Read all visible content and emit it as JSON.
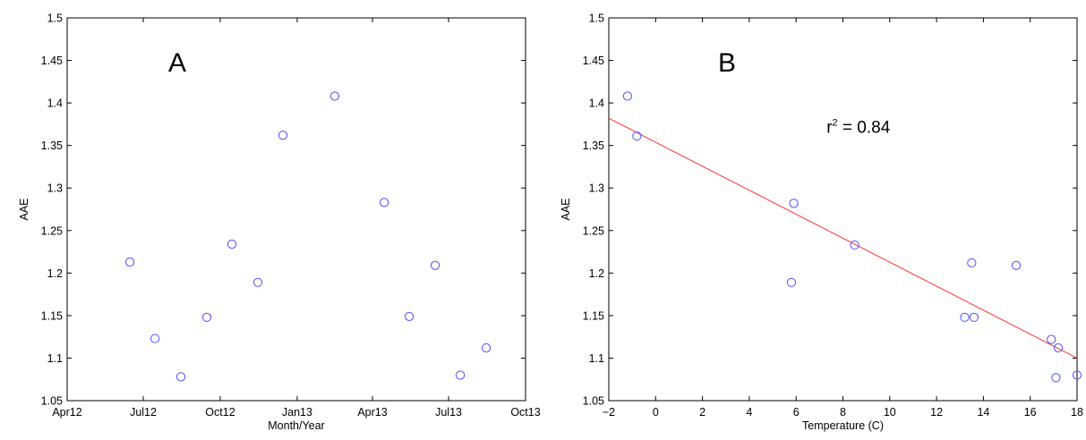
{
  "colors": {
    "marker": "#4d4dff",
    "fit_line": "#ff3333",
    "axis": "#000000",
    "background": "#ffffff"
  },
  "chart_data": [
    {
      "type": "scatter",
      "panel_label": "A",
      "xlabel": "Month/Year",
      "ylabel": "AAE",
      "x_axis_kind": "date",
      "xlim": [
        "2012-04",
        "2013-10"
      ],
      "ylim": [
        1.05,
        1.5
      ],
      "x_tick_values": [
        "2012-04",
        "2012-07",
        "2012-10",
        "2013-01",
        "2013-04",
        "2013-07",
        "2013-10"
      ],
      "x_tick_labels": [
        "Apr12",
        "Jul12",
        "Oct12",
        "Jan13",
        "Apr13",
        "Jul13",
        "Oct13"
      ],
      "y_tick_values": [
        1.05,
        1.1,
        1.15,
        1.2,
        1.25,
        1.3,
        1.35,
        1.4,
        1.45,
        1.5
      ],
      "y_tick_labels": [
        "1.05",
        "1.1",
        "1.15",
        "1.2",
        "1.25",
        "1.3",
        "1.35",
        "1.4",
        "1.45",
        "1.5"
      ],
      "grid": false,
      "marker": "open-circle",
      "x": [
        "2012-06-15",
        "2012-07-15",
        "2012-08-15",
        "2012-09-15",
        "2012-10-15",
        "2012-11-15",
        "2012-12-15",
        "2013-02-15",
        "2013-04-15",
        "2013-05-15",
        "2013-06-15",
        "2013-07-15",
        "2013-08-15"
      ],
      "y": [
        1.213,
        1.123,
        1.078,
        1.148,
        1.234,
        1.189,
        1.362,
        1.408,
        1.283,
        1.149,
        1.209,
        1.08,
        1.112
      ]
    },
    {
      "type": "scatter",
      "panel_label": "B",
      "xlabel": "Temperature (C)",
      "ylabel": "AAE",
      "xlim": [
        -2,
        18
      ],
      "ylim": [
        1.05,
        1.5
      ],
      "x_tick_values": [
        -2,
        0,
        2,
        4,
        6,
        8,
        10,
        12,
        14,
        16,
        18
      ],
      "x_tick_labels": [
        "−2",
        "0",
        "2",
        "4",
        "6",
        "8",
        "10",
        "12",
        "14",
        "16",
        "18"
      ],
      "y_tick_values": [
        1.05,
        1.1,
        1.15,
        1.2,
        1.25,
        1.3,
        1.35,
        1.4,
        1.45,
        1.5
      ],
      "y_tick_labels": [
        "1.05",
        "1.1",
        "1.15",
        "1.2",
        "1.25",
        "1.3",
        "1.35",
        "1.4",
        "1.45",
        "1.5"
      ],
      "grid": false,
      "marker": "open-circle",
      "x": [
        -1.2,
        -0.8,
        5.8,
        5.9,
        8.5,
        13.2,
        13.5,
        13.6,
        15.4,
        16.9,
        17.1,
        17.2,
        18.0
      ],
      "y": [
        1.408,
        1.361,
        1.189,
        1.282,
        1.233,
        1.148,
        1.212,
        1.148,
        1.209,
        1.122,
        1.077,
        1.112,
        1.08
      ],
      "fit_line": {
        "x": [
          -2,
          18
        ],
        "y": [
          1.382,
          1.1
        ]
      },
      "annotation": {
        "r": "r",
        "sup": "2",
        "text": " = 0.84",
        "x": 7.3,
        "y": 1.365
      }
    }
  ]
}
